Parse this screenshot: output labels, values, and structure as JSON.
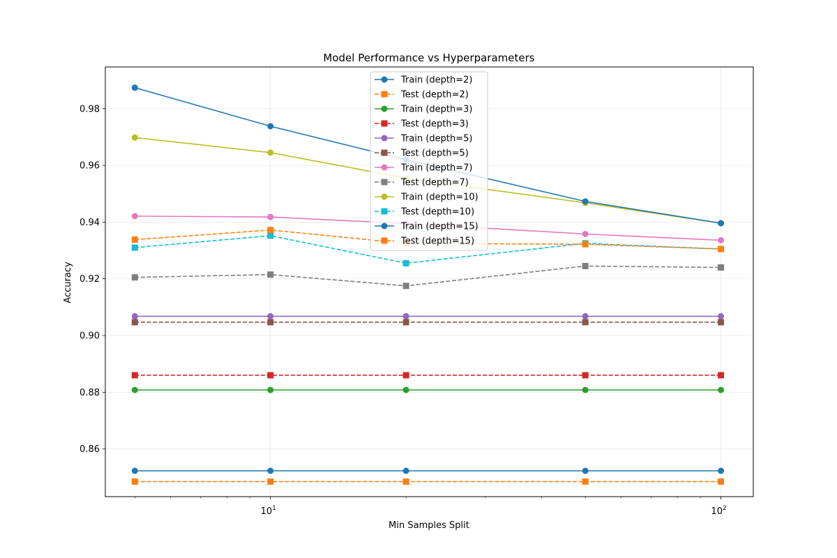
{
  "chart_data": {
    "type": "line",
    "title": "Model Performance vs Hyperparameters",
    "xlabel": "Min Samples Split",
    "ylabel": "Accuracy",
    "x_scale": "log",
    "xlim": [
      4.3,
      118
    ],
    "ylim": [
      0.8432,
      0.9947
    ],
    "x": [
      5,
      10,
      20,
      50,
      100
    ],
    "x_ticks": [
      {
        "value": 10,
        "base": "10",
        "exp": "1"
      },
      {
        "value": 100,
        "base": "10",
        "exp": "2"
      }
    ],
    "y_ticks": [
      {
        "value": 0.86,
        "label": "0.86"
      },
      {
        "value": 0.88,
        "label": "0.88"
      },
      {
        "value": 0.9,
        "label": "0.90"
      },
      {
        "value": 0.92,
        "label": "0.92"
      },
      {
        "value": 0.94,
        "label": "0.94"
      },
      {
        "value": 0.96,
        "label": "0.96"
      },
      {
        "value": 0.98,
        "label": "0.98"
      }
    ],
    "grid": true,
    "legend_position": "upper center",
    "series": [
      {
        "name": "Train (depth=2)",
        "color": "#1f77b4",
        "marker": "circle",
        "dashed": false,
        "values": [
          0.8523,
          0.8523,
          0.8523,
          0.8523,
          0.8523
        ]
      },
      {
        "name": "Test (depth=2)",
        "color": "#ff7f0e",
        "marker": "square",
        "dashed": true,
        "values": [
          0.8485,
          0.8485,
          0.8485,
          0.8485,
          0.8485
        ]
      },
      {
        "name": "Train (depth=3)",
        "color": "#2ca02c",
        "marker": "circle",
        "dashed": false,
        "values": [
          0.8808,
          0.8808,
          0.8808,
          0.8808,
          0.8808
        ]
      },
      {
        "name": "Test (depth=3)",
        "color": "#d62728",
        "marker": "square",
        "dashed": true,
        "values": [
          0.886,
          0.886,
          0.886,
          0.886,
          0.886
        ]
      },
      {
        "name": "Train (depth=5)",
        "color": "#9467bd",
        "marker": "circle",
        "dashed": false,
        "values": [
          0.9068,
          0.9068,
          0.9068,
          0.9068,
          0.9068
        ]
      },
      {
        "name": "Test (depth=5)",
        "color": "#8c564b",
        "marker": "square",
        "dashed": true,
        "values": [
          0.9047,
          0.9047,
          0.9047,
          0.9047,
          0.9047
        ]
      },
      {
        "name": "Train (depth=7)",
        "color": "#e377c2",
        "marker": "circle",
        "dashed": false,
        "values": [
          0.9421,
          0.9418,
          0.9395,
          0.9358,
          0.9336
        ]
      },
      {
        "name": "Test (depth=7)",
        "color": "#7f7f7f",
        "marker": "square",
        "dashed": true,
        "values": [
          0.9205,
          0.9215,
          0.9175,
          0.9245,
          0.924
        ]
      },
      {
        "name": "Train (depth=10)",
        "color": "#bcbd22",
        "marker": "circle",
        "dashed": false,
        "values": [
          0.9698,
          0.9645,
          0.9555,
          0.9468,
          0.9396
        ]
      },
      {
        "name": "Test (depth=10)",
        "color": "#17becf",
        "marker": "square",
        "dashed": true,
        "values": [
          0.931,
          0.9352,
          0.9255,
          0.9325,
          0.9305
        ]
      },
      {
        "name": "Train (depth=15)",
        "color": "#1f77b4",
        "marker": "circle",
        "dashed": false,
        "values": [
          0.9874,
          0.9738,
          0.962,
          0.9473,
          0.9396
        ]
      },
      {
        "name": "Test (depth=15)",
        "color": "#ff7f0e",
        "marker": "square",
        "dashed": true,
        "values": [
          0.9338,
          0.9372,
          0.9325,
          0.9322,
          0.9305
        ]
      }
    ]
  }
}
